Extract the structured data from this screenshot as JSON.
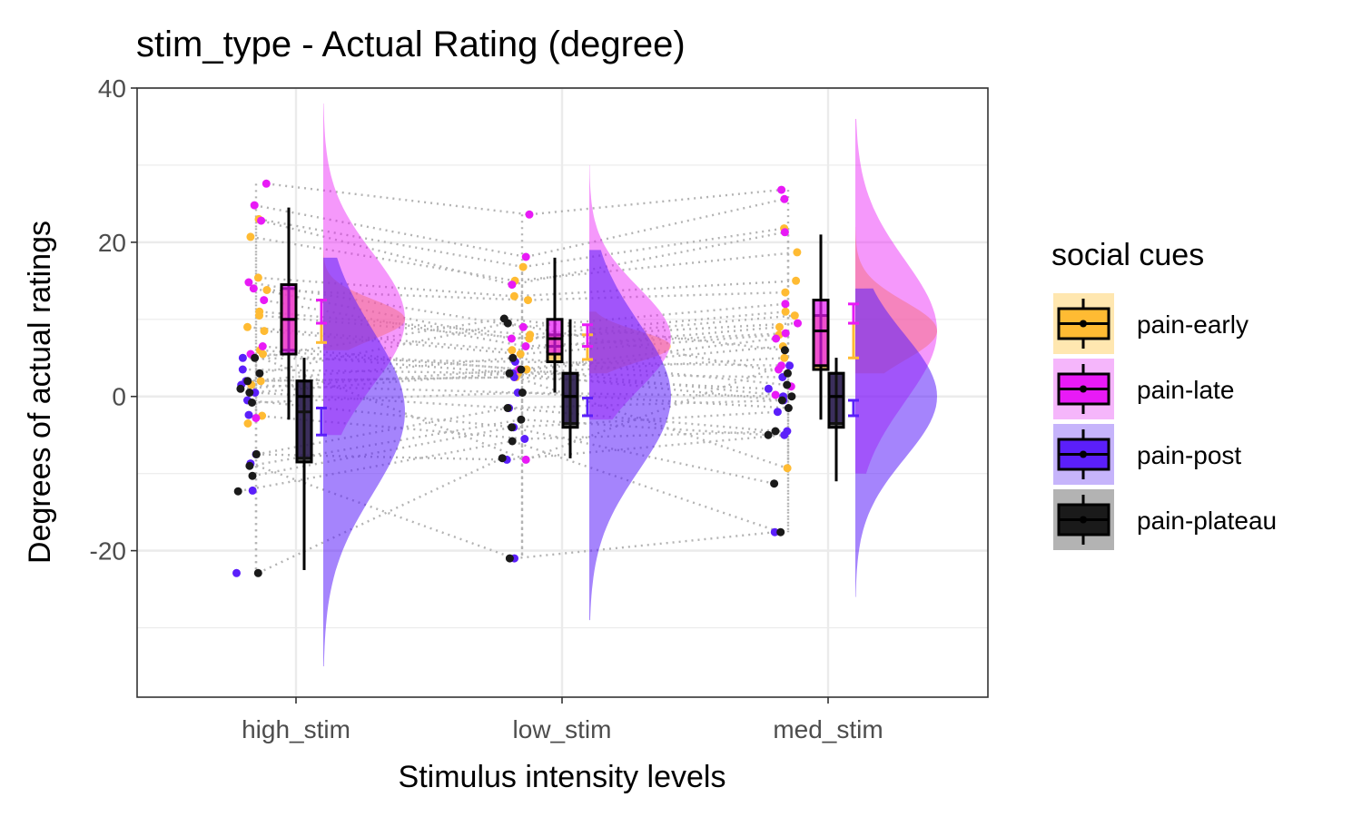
{
  "chart_data": {
    "type": "raincloud",
    "title": "stim_type  - Actual Rating (degree)",
    "xlabel": "Stimulus intensity levels",
    "ylabel": "Degrees of actual ratings",
    "categories": [
      "high_stim",
      "low_stim",
      "med_stim"
    ],
    "ylim": [
      -39,
      40
    ],
    "yticks": [
      -20,
      0,
      20,
      40
    ],
    "y_tick_labels": [
      "-20",
      "0",
      "20",
      "40"
    ],
    "grid": true,
    "legend": {
      "title": "social cues",
      "position": "right",
      "entries": [
        {
          "name": "pain-early",
          "color": "#FFBB33",
          "fill": "#FFE7B0"
        },
        {
          "name": "pain-late",
          "color": "#E81AF6",
          "fill": "#F5B6FB"
        },
        {
          "name": "pain-post",
          "color": "#5B1FFA",
          "fill": "#C6B4FB"
        },
        {
          "name": "pain-plateau",
          "color": "#1A1A1A",
          "fill": "#B3B3B3"
        }
      ]
    },
    "series": [
      {
        "name": "pain-early",
        "color": "#FFBB33",
        "box": [
          {
            "category": "high_stim",
            "q1": 6.0,
            "median": 10.0,
            "q3": 14.0,
            "lower": -3.0,
            "upper": 23.0
          },
          {
            "category": "low_stim",
            "q1": 4.5,
            "median": 6.5,
            "q3": 8.0,
            "lower": 0.5,
            "upper": 11.0
          },
          {
            "category": "med_stim",
            "q1": 3.5,
            "median": 8.5,
            "q3": 10.5,
            "lower": -2.5,
            "upper": 18.5
          }
        ],
        "error_bar": [
          {
            "category": "high_stim",
            "mean": 9.5,
            "low": 7.0,
            "high": 12.5
          },
          {
            "category": "low_stim",
            "mean": 6.5,
            "low": 4.8,
            "high": 8.0
          },
          {
            "category": "med_stim",
            "mean": 7.0,
            "low": 5.0,
            "high": 9.5
          }
        ],
        "points": [
          {
            "category": "high_stim",
            "values": [
              23.0,
              20.7,
              15.4,
              13.8,
              11.0,
              10.5,
              9.0,
              8.5,
              6.0,
              5.5,
              2.0,
              1.5,
              -2.5,
              -3.5
            ]
          },
          {
            "category": "low_stim",
            "values": [
              16.8,
              15.0,
              13.0,
              12.5,
              8.0,
              7.5,
              6.0,
              5.5,
              3.5,
              3.0,
              2.5
            ]
          },
          {
            "category": "med_stim",
            "values": [
              21.8,
              18.7,
              15.0,
              13.5,
              11.0,
              10.5,
              9.0,
              8.0,
              6.5,
              5.0,
              -9.3
            ]
          }
        ],
        "density_range": [
          {
            "category": "high_stim",
            "min": 6,
            "max": 19
          },
          {
            "category": "low_stim",
            "min": 3,
            "max": 11
          },
          {
            "category": "med_stim",
            "min": 3,
            "max": 22
          }
        ]
      },
      {
        "name": "pain-late",
        "color": "#E81AF6",
        "box": [
          {
            "category": "high_stim",
            "q1": 5.5,
            "median": 10.0,
            "q3": 14.5,
            "lower": -2.5,
            "upper": 24.5
          },
          {
            "category": "low_stim",
            "q1": 5.5,
            "median": 7.5,
            "q3": 10.0,
            "lower": 1.5,
            "upper": 18.0
          },
          {
            "category": "med_stim",
            "q1": 4.0,
            "median": 8.5,
            "q3": 12.5,
            "lower": -3.0,
            "upper": 21.0
          }
        ],
        "error_bar": [
          {
            "category": "high_stim",
            "mean": 11.0,
            "low": 9.5,
            "high": 12.5
          },
          {
            "category": "low_stim",
            "mean": 7.8,
            "low": 6.5,
            "high": 9.3
          },
          {
            "category": "med_stim",
            "mean": 11.0,
            "low": 9.5,
            "high": 12.0
          }
        ],
        "points": [
          {
            "category": "high_stim",
            "values": [
              27.6,
              24.8,
              22.8,
              14.8,
              14.0,
              12.5,
              6.5,
              5.5,
              -2.8
            ]
          },
          {
            "category": "low_stim",
            "values": [
              23.6,
              18.1,
              14.5,
              9.0,
              7.5,
              6.5,
              3.5,
              -8.2
            ]
          },
          {
            "category": "med_stim",
            "values": [
              26.8,
              25.6,
              21.3,
              12.0,
              9.5,
              8.2,
              7.5,
              4.0,
              3.5,
              1.3,
              0.2
            ]
          }
        ],
        "density_range": [
          {
            "category": "high_stim",
            "min": -5,
            "max": 38
          },
          {
            "category": "low_stim",
            "min": -3,
            "max": 30
          },
          {
            "category": "med_stim",
            "min": -10,
            "max": 36
          }
        ]
      },
      {
        "name": "pain-post",
        "color": "#5B1FFA",
        "box": [
          {
            "category": "high_stim",
            "q1": -8.0,
            "median": -2.0,
            "q3": 2.0,
            "lower": -22.5,
            "upper": 5.0
          },
          {
            "category": "low_stim",
            "q1": -3.5,
            "median": 0.0,
            "q3": 3.0,
            "lower": -8.0,
            "upper": 10.0
          },
          {
            "category": "med_stim",
            "q1": -3.5,
            "median": 0.0,
            "q3": 3.0,
            "lower": -11.0,
            "upper": 5.0
          }
        ],
        "error_bar": [
          {
            "category": "high_stim",
            "mean": -3.0,
            "low": -5.0,
            "high": -1.5
          },
          {
            "category": "low_stim",
            "mean": -1.2,
            "low": -2.5,
            "high": -0.2
          },
          {
            "category": "med_stim",
            "mean": -1.5,
            "low": -2.5,
            "high": -0.5
          }
        ],
        "points": [
          {
            "category": "high_stim",
            "values": [
              5.0,
              3.5,
              2.0,
              1.5,
              0.5,
              -0.5,
              -2.4,
              -7.5,
              -8.7,
              -12.2,
              -22.9
            ]
          },
          {
            "category": "low_stim",
            "values": [
              4.5,
              3.0,
              2.5,
              0.5,
              -1.5,
              -4.0,
              -5.5,
              -8.2,
              -21.0
            ]
          },
          {
            "category": "med_stim",
            "values": [
              4.0,
              2.5,
              1.0,
              0.0,
              -0.5,
              -2.0,
              -4.5,
              -5.0,
              -17.6
            ]
          }
        ],
        "density_range": [
          {
            "category": "high_stim",
            "min": -35,
            "max": 18
          },
          {
            "category": "low_stim",
            "min": -29,
            "max": 19
          },
          {
            "category": "med_stim",
            "min": -26,
            "max": 14
          }
        ]
      },
      {
        "name": "pain-plateau",
        "color": "#1A1A1A",
        "box": [
          {
            "category": "high_stim",
            "q1": -8.5,
            "median": 0.0,
            "q3": 2.0,
            "lower": -22.5,
            "upper": 5.0
          },
          {
            "category": "low_stim",
            "q1": -4.0,
            "median": 0.0,
            "q3": 3.0,
            "lower": -8.0,
            "upper": 10.0
          },
          {
            "category": "med_stim",
            "q1": -4.0,
            "median": 0.0,
            "q3": 3.0,
            "lower": -11.0,
            "upper": 5.0
          }
        ],
        "error_bar": [],
        "points": [
          {
            "category": "high_stim",
            "values": [
              5.0,
              3.0,
              2.0,
              1.0,
              0.5,
              -0.8,
              -7.5,
              -9.0,
              -10.3,
              -12.3,
              -22.9
            ]
          },
          {
            "category": "low_stim",
            "values": [
              10.1,
              9.5,
              5.0,
              3.5,
              3.0,
              0.5,
              -1.5,
              -3.0,
              -4.0,
              -5.8,
              -8.0,
              -21.0
            ]
          },
          {
            "category": "med_stim",
            "values": [
              6.0,
              3.0,
              1.5,
              0.0,
              -0.5,
              -1.5,
              -4.5,
              -5.0,
              -11.3,
              -17.6
            ]
          }
        ],
        "density_range": []
      }
    ]
  }
}
